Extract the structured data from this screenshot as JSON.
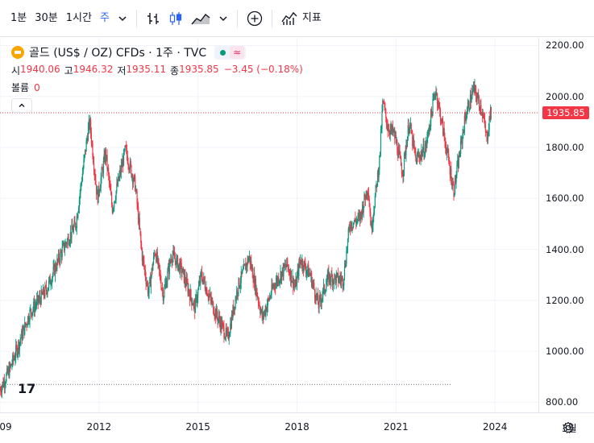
{
  "toolbar": {
    "intervals": [
      "1분",
      "30분",
      "1시간",
      "주"
    ],
    "active_interval": "주",
    "indicators_label": "지표"
  },
  "legend": {
    "symbol_title": "골드 (US$ / OZ) CFDs · 1주 · TVC",
    "open_label": "시",
    "open": "1940.06",
    "high_label": "고",
    "high": "1946.32",
    "low_label": "저",
    "low": "1935.11",
    "close_label": "종",
    "close": "1935.85",
    "change": "−3.45 (−0.18%)",
    "volume_label": "볼륨",
    "volume": "0"
  },
  "colors": {
    "up": "#089981",
    "down": "#f23645",
    "accent": "#2962ff"
  },
  "tv_logo_text": "17",
  "chart_data": {
    "type": "candlestick",
    "title": "골드 (US$ / OZ) CFDs · 1주 · TVC",
    "ylim": [
      760,
      2230
    ],
    "y_ticks": [
      "2200.00",
      "2000.00",
      "1800.00",
      "1600.00",
      "1400.00",
      "1200.00",
      "1000.00",
      "800.00"
    ],
    "y_tick_values": [
      2200,
      2000,
      1800,
      1600,
      1400,
      1200,
      1000,
      800
    ],
    "x_ticks": [
      "09",
      "2012",
      "2015",
      "2018",
      "2021",
      "2024",
      "3월"
    ],
    "x_tick_years": [
      2009.0,
      2012.0,
      2015.0,
      2018.0,
      2021.0,
      2024.0,
      2026.25
    ],
    "xlim": [
      2009.0,
      2027.0
    ],
    "last_price": 1935.85,
    "last_price_label": "1935.85",
    "reference_level": 870,
    "keypoints": [
      [
        2009.0,
        850
      ],
      [
        2009.3,
        930
      ],
      [
        2009.9,
        1150
      ],
      [
        2010.4,
        1240
      ],
      [
        2010.9,
        1400
      ],
      [
        2011.3,
        1500
      ],
      [
        2011.65,
        1850
      ],
      [
        2011.72,
        1900
      ],
      [
        2011.95,
        1600
      ],
      [
        2012.2,
        1780
      ],
      [
        2012.4,
        1560
      ],
      [
        2012.8,
        1790
      ],
      [
        2013.1,
        1650
      ],
      [
        2013.3,
        1380
      ],
      [
        2013.5,
        1230
      ],
      [
        2013.7,
        1400
      ],
      [
        2013.95,
        1220
      ],
      [
        2014.2,
        1380
      ],
      [
        2014.5,
        1320
      ],
      [
        2014.9,
        1170
      ],
      [
        2015.1,
        1300
      ],
      [
        2015.5,
        1160
      ],
      [
        2015.9,
        1050
      ],
      [
        2016.2,
        1250
      ],
      [
        2016.55,
        1370
      ],
      [
        2016.95,
        1130
      ],
      [
        2017.3,
        1260
      ],
      [
        2017.7,
        1340
      ],
      [
        2017.95,
        1250
      ],
      [
        2018.1,
        1360
      ],
      [
        2018.4,
        1300
      ],
      [
        2018.65,
        1180
      ],
      [
        2018.95,
        1290
      ],
      [
        2019.4,
        1280
      ],
      [
        2019.6,
        1500
      ],
      [
        2019.9,
        1520
      ],
      [
        2020.15,
        1650
      ],
      [
        2020.25,
        1480
      ],
      [
        2020.5,
        1750
      ],
      [
        2020.6,
        1980
      ],
      [
        2020.75,
        1880
      ],
      [
        2020.95,
        1850
      ],
      [
        2021.2,
        1700
      ],
      [
        2021.4,
        1900
      ],
      [
        2021.6,
        1750
      ],
      [
        2021.9,
        1800
      ],
      [
        2022.2,
        2030
      ],
      [
        2022.45,
        1850
      ],
      [
        2022.75,
        1630
      ],
      [
        2022.9,
        1750
      ],
      [
        2023.1,
        1920
      ],
      [
        2023.35,
        2030
      ],
      [
        2023.6,
        1950
      ],
      [
        2023.75,
        1830
      ],
      [
        2023.85,
        1930
      ],
      [
        2023.9,
        1936
      ]
    ]
  }
}
